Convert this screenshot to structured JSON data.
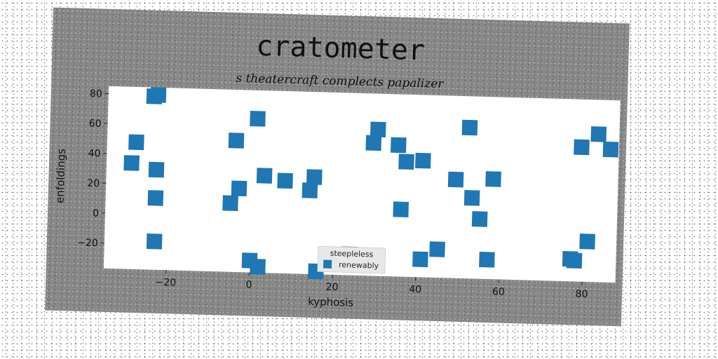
{
  "chart_data": {
    "type": "scatter",
    "title": "cratometer",
    "subtitle": "s theatercraft complects papalizer",
    "xlabel": "kyphosis",
    "ylabel": "enfoldings",
    "xlim": [
      -35,
      88
    ],
    "ylim": [
      -37,
      85
    ],
    "xticks": [
      -20,
      0,
      20,
      40,
      60,
      80
    ],
    "yticks": [
      -20,
      0,
      20,
      40,
      60,
      80
    ],
    "grid": false,
    "legend": {
      "title": "steepleless",
      "placement": "bottom-center"
    },
    "series": [
      {
        "name": "renewably",
        "color": "#1f77b4",
        "marker": "square",
        "points": [
          [
            -29,
            34
          ],
          [
            -28,
            48
          ],
          [
            -24,
            79
          ],
          [
            -23,
            80
          ],
          [
            -23,
            30
          ],
          [
            -23,
            11
          ],
          [
            -23,
            -18
          ],
          [
            -5,
            9
          ],
          [
            -4,
            51
          ],
          [
            -3,
            19
          ],
          [
            0,
            -29
          ],
          [
            1,
            66
          ],
          [
            2,
            -33
          ],
          [
            3,
            28
          ],
          [
            8,
            25
          ],
          [
            14,
            19
          ],
          [
            15,
            28
          ],
          [
            16,
            -35
          ],
          [
            24,
            -23
          ],
          [
            29,
            52
          ],
          [
            30,
            61
          ],
          [
            35,
            51
          ],
          [
            36,
            8
          ],
          [
            37,
            40
          ],
          [
            41,
            41
          ],
          [
            41,
            -25
          ],
          [
            45,
            -18
          ],
          [
            49,
            29
          ],
          [
            52,
            64
          ],
          [
            53,
            17
          ],
          [
            55,
            3
          ],
          [
            57,
            -24
          ],
          [
            58,
            30
          ],
          [
            77,
            -22
          ],
          [
            78,
            -23
          ],
          [
            79,
            53
          ],
          [
            81,
            -10
          ],
          [
            83,
            62
          ],
          [
            86,
            52
          ]
        ]
      }
    ]
  }
}
